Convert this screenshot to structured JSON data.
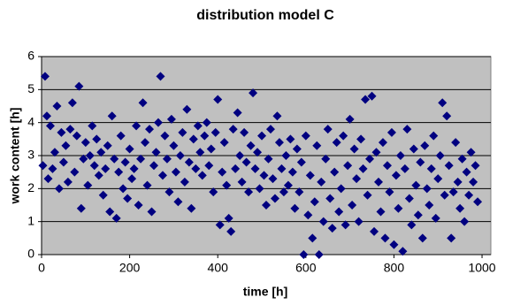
{
  "chart_data": {
    "type": "scatter",
    "title": "distribution model C",
    "x_label": "time [h]",
    "y_label": "work content [h]",
    "color": "#000080",
    "plot_background": "#c0c0c0",
    "grid": true,
    "xlim": [
      0,
      1020
    ],
    "xticks": [
      0,
      200,
      400,
      600,
      800,
      1000
    ],
    "ylim": [
      0,
      6
    ],
    "yticks": [
      0,
      1,
      2,
      3,
      4,
      5,
      6
    ],
    "x": [
      3,
      8,
      12,
      15,
      20,
      25,
      30,
      35,
      40,
      45,
      50,
      55,
      60,
      65,
      70,
      75,
      80,
      85,
      90,
      95,
      100,
      105,
      110,
      115,
      120,
      125,
      130,
      135,
      140,
      145,
      150,
      155,
      160,
      165,
      170,
      175,
      180,
      185,
      190,
      195,
      200,
      205,
      210,
      215,
      220,
      225,
      230,
      235,
      240,
      245,
      250,
      255,
      260,
      265,
      270,
      275,
      280,
      285,
      290,
      295,
      300,
      305,
      310,
      315,
      320,
      325,
      330,
      335,
      340,
      345,
      350,
      355,
      360,
      365,
      370,
      375,
      380,
      385,
      390,
      395,
      400,
      405,
      410,
      415,
      420,
      425,
      430,
      435,
      440,
      445,
      450,
      455,
      460,
      465,
      470,
      475,
      480,
      485,
      490,
      495,
      500,
      505,
      510,
      515,
      520,
      525,
      530,
      535,
      540,
      545,
      550,
      555,
      560,
      565,
      570,
      575,
      580,
      585,
      590,
      595,
      600,
      605,
      610,
      615,
      620,
      625,
      630,
      635,
      640,
      645,
      650,
      655,
      660,
      665,
      670,
      675,
      680,
      685,
      690,
      695,
      700,
      705,
      710,
      715,
      720,
      725,
      730,
      735,
      740,
      745,
      750,
      755,
      760,
      765,
      770,
      775,
      780,
      785,
      790,
      795,
      800,
      805,
      810,
      815,
      820,
      825,
      830,
      835,
      840,
      845,
      850,
      855,
      860,
      865,
      870,
      875,
      880,
      885,
      890,
      895,
      900,
      905,
      910,
      915,
      920,
      925,
      930,
      935,
      940,
      945,
      950,
      955,
      960,
      965,
      970,
      975,
      980,
      985,
      990
    ],
    "values": [
      2.7,
      5.4,
      4.2,
      2.3,
      3.9,
      2.6,
      3.1,
      4.5,
      2.0,
      3.7,
      2.8,
      3.3,
      2.2,
      3.8,
      4.6,
      2.5,
      3.6,
      5.1,
      1.4,
      2.9,
      3.4,
      2.1,
      3.0,
      3.9,
      2.7,
      3.5,
      2.4,
      3.1,
      1.8,
      2.6,
      3.3,
      1.3,
      4.2,
      2.9,
      1.1,
      2.5,
      3.6,
      2.0,
      2.8,
      1.7,
      3.2,
      2.3,
      2.6,
      3.9,
      1.5,
      2.9,
      4.6,
      3.4,
      2.1,
      3.8,
      1.3,
      2.7,
      3.1,
      4.0,
      5.4,
      2.4,
      3.6,
      2.9,
      1.9,
      4.1,
      3.3,
      2.5,
      1.6,
      3.0,
      3.7,
      2.2,
      4.4,
      2.8,
      1.4,
      3.5,
      2.6,
      3.9,
      3.1,
      2.4,
      3.6,
      4.0,
      2.7,
      3.2,
      1.9,
      3.7,
      4.7,
      0.9,
      2.5,
      3.4,
      2.1,
      1.1,
      0.7,
      3.8,
      2.6,
      4.3,
      3.0,
      2.2,
      3.7,
      2.8,
      1.9,
      3.3,
      4.9,
      2.6,
      3.1,
      2.0,
      3.6,
      2.4,
      1.5,
      2.9,
      3.8,
      2.3,
      1.7,
      4.2,
      3.4,
      2.6,
      1.9,
      3.0,
      2.1,
      3.5,
      2.5,
      1.4,
      3.2,
      1.9,
      2.8,
      0.0,
      3.6,
      1.2,
      2.4,
      0.5,
      1.6,
      3.3,
      0.0,
      2.2,
      1.0,
      2.9,
      3.8,
      1.7,
      0.8,
      2.5,
      3.4,
      1.3,
      2.0,
      3.6,
      0.9,
      2.7,
      4.1,
      1.5,
      3.2,
      2.3,
      1.0,
      3.5,
      2.6,
      4.7,
      1.8,
      2.9,
      4.8,
      0.7,
      3.1,
      2.2,
      1.3,
      3.4,
      0.5,
      2.7,
      1.9,
      3.7,
      0.3,
      2.4,
      1.4,
      3.0,
      0.1,
      2.6,
      3.8,
      1.7,
      0.9,
      3.2,
      2.1,
      1.2,
      2.8,
      0.5,
      3.3,
      2.0,
      1.5,
      2.6,
      3.6,
      1.1,
      2.3,
      3.0,
      4.6,
      1.8,
      4.2,
      2.7,
      0.5,
      1.9,
      3.4,
      2.2,
      1.4,
      2.9,
      1.0,
      2.5,
      1.8,
      3.1,
      2.2,
      2.7,
      1.6
    ]
  }
}
